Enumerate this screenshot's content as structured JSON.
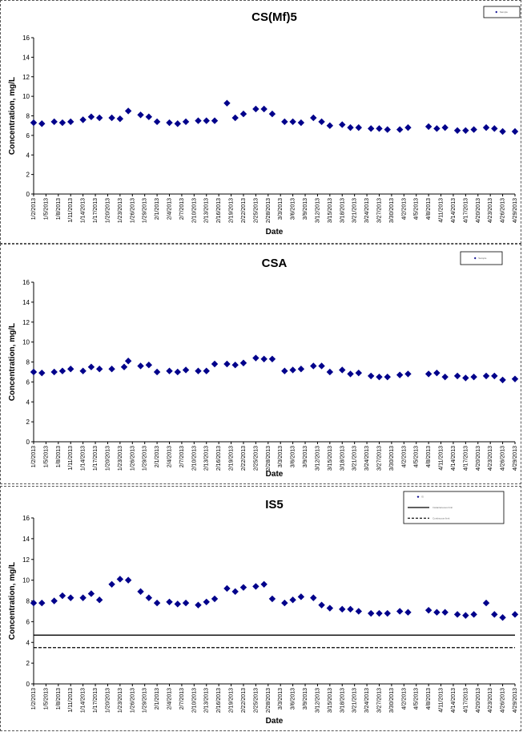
{
  "dates": [
    "1/2/2013",
    "1/5/2013",
    "1/8/2013",
    "1/11/2013",
    "1/14/2013",
    "1/17/2013",
    "1/20/2013",
    "1/23/2013",
    "1/26/2013",
    "1/29/2013",
    "2/1/2013",
    "2/4/2013",
    "2/7/2013",
    "2/10/2013",
    "2/13/2013",
    "2/16/2013",
    "2/19/2013",
    "2/22/2013",
    "2/25/2013",
    "2/28/2013",
    "3/3/2013",
    "3/6/2013",
    "3/9/2013",
    "3/12/2013",
    "3/15/2013",
    "3/18/2013",
    "3/21/2013",
    "3/24/2013",
    "3/27/2013",
    "3/30/2013",
    "4/2/2013",
    "4/5/2013",
    "4/8/2013",
    "4/11/2013",
    "4/14/2013",
    "4/17/2013",
    "4/20/2013",
    "4/23/2013",
    "4/26/2013",
    "4/29/2013"
  ],
  "chart_data": [
    {
      "type": "scatter",
      "title": "CS(Mf)5",
      "xlabel": "Date",
      "ylabel": "Concentration, mg/L",
      "ylim": [
        0,
        16
      ],
      "yticks": [
        0,
        2,
        4,
        6,
        8,
        10,
        12,
        14,
        16
      ],
      "x_start": "1/2/2013",
      "x_end": "4/29/2013",
      "xtick_step_days": 3,
      "marker_color": "#00008b",
      "legend": {
        "position": "top-right",
        "entries": [
          {
            "label": "Sample",
            "kind": "marker"
          }
        ]
      },
      "series": [
        {
          "x": [
            "1/2/2013",
            "1/4/2013",
            "1/7/2013",
            "1/9/2013",
            "1/11/2013",
            "1/14/2013",
            "1/16/2013",
            "1/18/2013",
            "1/21/2013",
            "1/23/2013",
            "1/25/2013",
            "1/28/2013",
            "1/30/2013",
            "2/1/2013",
            "2/4/2013",
            "2/6/2013",
            "2/8/2013",
            "2/11/2013",
            "2/13/2013",
            "2/15/2013",
            "2/18/2013",
            "2/20/2013",
            "2/22/2013",
            "2/25/2013",
            "2/27/2013",
            "3/1/2013",
            "3/4/2013",
            "3/6/2013",
            "3/8/2013",
            "3/11/2013",
            "3/13/2013",
            "3/15/2013",
            "3/18/2013",
            "3/20/2013",
            "3/22/2013",
            "3/25/2013",
            "3/27/2013",
            "3/29/2013",
            "4/1/2013",
            "4/3/2013",
            "4/8/2013",
            "4/10/2013",
            "4/12/2013",
            "4/15/2013",
            "4/17/2013",
            "4/19/2013",
            "4/22/2013",
            "4/24/2013",
            "4/26/2013",
            "4/29/2013"
          ],
          "y": [
            7.3,
            7.2,
            7.4,
            7.3,
            7.4,
            7.6,
            7.9,
            7.8,
            7.8,
            7.7,
            8.5,
            8.1,
            7.9,
            7.4,
            7.3,
            7.2,
            7.4,
            7.5,
            7.5,
            7.5,
            9.3,
            7.8,
            8.2,
            8.7,
            8.7,
            8.2,
            7.4,
            7.4,
            7.3,
            7.8,
            7.4,
            7.0,
            7.1,
            6.8,
            6.8,
            6.7,
            6.7,
            6.6,
            6.6,
            6.8,
            6.9,
            6.7,
            6.8,
            6.5,
            6.5,
            6.6,
            6.8,
            6.7,
            6.4,
            6.4
          ]
        }
      ]
    },
    {
      "type": "scatter",
      "title": "CSA",
      "xlabel": "Date",
      "ylabel": "Concentration, mg/L",
      "ylim": [
        0,
        16
      ],
      "yticks": [
        0,
        2,
        4,
        6,
        8,
        10,
        12,
        14,
        16
      ],
      "x_start": "1/2/2013",
      "x_end": "4/29/2013",
      "xtick_step_days": 3,
      "marker_color": "#00008b",
      "legend": {
        "position": "top-right",
        "entries": [
          {
            "label": "Sample",
            "kind": "marker"
          }
        ]
      },
      "series": [
        {
          "x": [
            "1/2/2013",
            "1/4/2013",
            "1/7/2013",
            "1/9/2013",
            "1/11/2013",
            "1/14/2013",
            "1/16/2013",
            "1/18/2013",
            "1/21/2013",
            "1/24/2013",
            "1/25/2013",
            "1/28/2013",
            "1/30/2013",
            "2/1/2013",
            "2/4/2013",
            "2/6/2013",
            "2/8/2013",
            "2/11/2013",
            "2/13/2013",
            "2/15/2013",
            "2/18/2013",
            "2/20/2013",
            "2/22/2013",
            "2/25/2013",
            "2/27/2013",
            "3/1/2013",
            "3/4/2013",
            "3/6/2013",
            "3/8/2013",
            "3/11/2013",
            "3/13/2013",
            "3/15/2013",
            "3/18/2013",
            "3/20/2013",
            "3/22/2013",
            "3/25/2013",
            "3/27/2013",
            "3/29/2013",
            "4/1/2013",
            "4/3/2013",
            "4/8/2013",
            "4/10/2013",
            "4/12/2013",
            "4/15/2013",
            "4/17/2013",
            "4/19/2013",
            "4/22/2013",
            "4/24/2013",
            "4/26/2013",
            "4/29/2013"
          ],
          "y": [
            7.0,
            6.9,
            7.0,
            7.1,
            7.3,
            7.1,
            7.5,
            7.3,
            7.3,
            7.5,
            8.1,
            7.6,
            7.7,
            7.0,
            7.1,
            7.0,
            7.2,
            7.1,
            7.1,
            7.8,
            7.8,
            7.7,
            7.9,
            8.4,
            8.3,
            8.3,
            7.1,
            7.2,
            7.3,
            7.6,
            7.6,
            7.0,
            7.2,
            6.8,
            6.9,
            6.6,
            6.5,
            6.5,
            6.7,
            6.8,
            6.8,
            6.9,
            6.5,
            6.6,
            6.4,
            6.5,
            6.6,
            6.6,
            6.2,
            6.3
          ]
        }
      ]
    },
    {
      "type": "scatter",
      "title": "IS5",
      "xlabel": "Date",
      "ylabel": "Concentration, mg/L",
      "ylim": [
        0,
        16
      ],
      "yticks": [
        0,
        2,
        4,
        6,
        8,
        10,
        12,
        14,
        16
      ],
      "x_start": "1/2/2013",
      "x_end": "4/29/2013",
      "xtick_step_days": 3,
      "marker_color": "#00008b",
      "legend": {
        "position": "top-right",
        "entries": [
          {
            "label": "IS",
            "kind": "marker"
          },
          {
            "label": "Instantaneous limit",
            "kind": "solid"
          },
          {
            "label": "Continuous limit",
            "kind": "dashed"
          }
        ]
      },
      "reference_lines": [
        {
          "y": 4.7,
          "style": "solid"
        },
        {
          "y": 3.5,
          "style": "dashed"
        }
      ],
      "series": [
        {
          "x": [
            "1/2/2013",
            "1/4/2013",
            "1/7/2013",
            "1/9/2013",
            "1/11/2013",
            "1/14/2013",
            "1/16/2013",
            "1/18/2013",
            "1/21/2013",
            "1/23/2013",
            "1/25/2013",
            "1/28/2013",
            "1/30/2013",
            "2/1/2013",
            "2/4/2013",
            "2/6/2013",
            "2/8/2013",
            "2/11/2013",
            "2/13/2013",
            "2/15/2013",
            "2/18/2013",
            "2/20/2013",
            "2/22/2013",
            "2/25/2013",
            "2/27/2013",
            "3/1/2013",
            "3/4/2013",
            "3/6/2013",
            "3/8/2013",
            "3/11/2013",
            "3/13/2013",
            "3/15/2013",
            "3/18/2013",
            "3/20/2013",
            "3/22/2013",
            "3/25/2013",
            "3/27/2013",
            "3/29/2013",
            "4/1/2013",
            "4/3/2013",
            "4/8/2013",
            "4/10/2013",
            "4/12/2013",
            "4/15/2013",
            "4/17/2013",
            "4/19/2013",
            "4/22/2013",
            "4/24/2013",
            "4/26/2013",
            "4/29/2013"
          ],
          "y": [
            7.8,
            7.8,
            8.0,
            8.5,
            8.3,
            8.3,
            8.7,
            8.1,
            9.6,
            10.1,
            10.0,
            8.9,
            8.3,
            7.8,
            7.9,
            7.7,
            7.8,
            7.6,
            7.9,
            8.2,
            9.2,
            8.9,
            9.3,
            9.4,
            9.6,
            8.2,
            7.8,
            8.1,
            8.4,
            8.3,
            7.6,
            7.3,
            7.2,
            7.2,
            7.0,
            6.8,
            6.8,
            6.8,
            7.0,
            6.9,
            7.1,
            6.9,
            6.9,
            6.7,
            6.6,
            6.7,
            7.8,
            6.7,
            6.4,
            6.7
          ]
        }
      ]
    }
  ]
}
